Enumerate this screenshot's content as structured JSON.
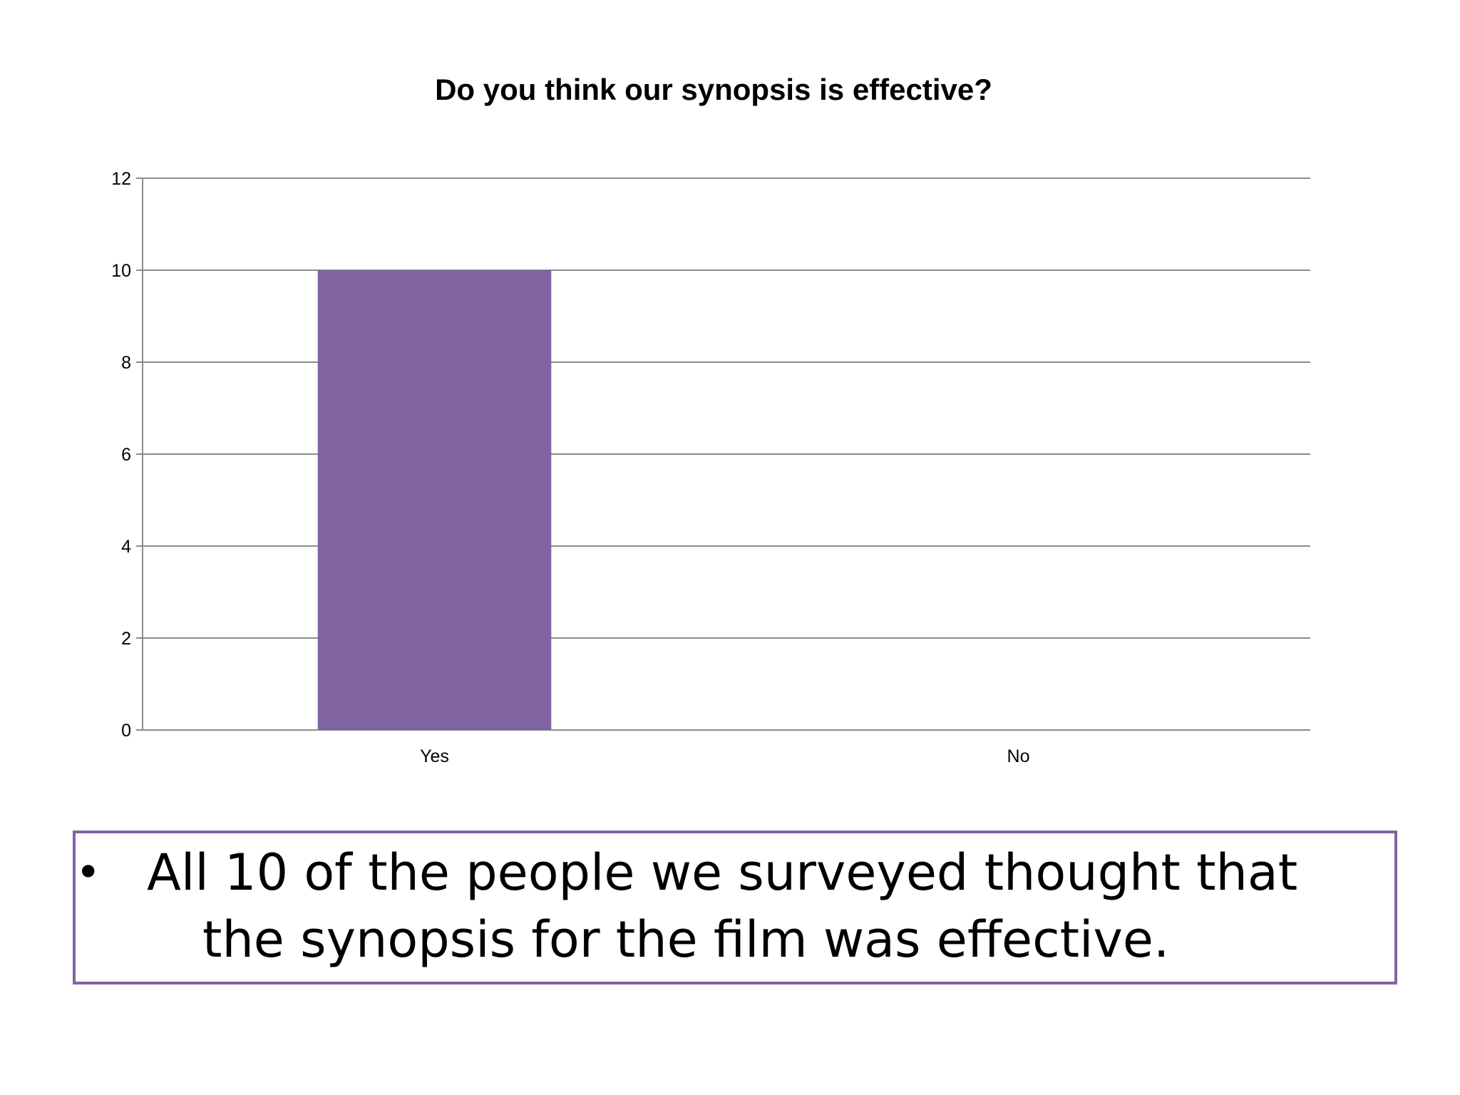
{
  "slide": {
    "bullets": [
      "All 10 of the people we surveyed thought that the synopsis for the film was effective."
    ]
  },
  "chart_data": {
    "type": "bar",
    "title": "Do you think our synopsis is effective?",
    "categories": [
      "Yes",
      "No"
    ],
    "values": [
      10,
      0
    ],
    "ylim": [
      0,
      12
    ],
    "yticks": [
      0,
      2,
      4,
      6,
      8,
      10,
      12
    ],
    "grid": true,
    "legend": "none",
    "bar_color": "#8064A2",
    "xlabel": "",
    "ylabel": ""
  }
}
